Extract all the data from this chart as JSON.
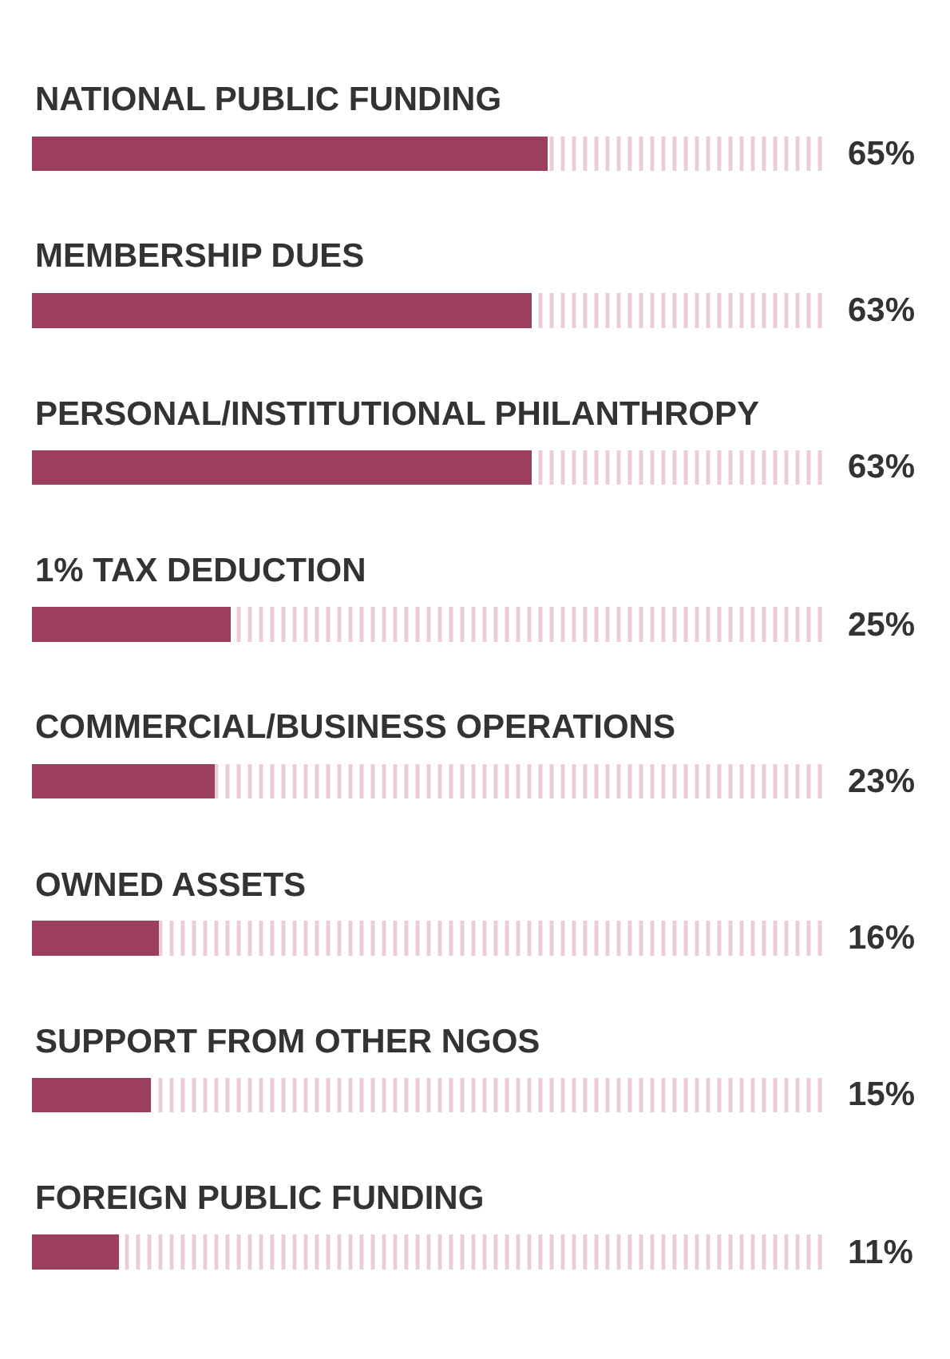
{
  "chart_data": {
    "type": "bar",
    "orientation": "horizontal",
    "stacked": true,
    "legend": false,
    "tick_labels": false,
    "xlim": [
      0,
      100
    ],
    "categories": [
      "NATIONAL PUBLIC FUNDING",
      "MEMBERSHIP DUES",
      "PERSONAL/INSTITUTIONAL PHILANTHROPY",
      "1% TAX DEDUCTION",
      "COMMERCIAL/BUSINESS OPERATIONS",
      "OWNED ASSETS",
      "SUPPORT FROM OTHER NGOS",
      "FOREIGN PUBLIC FUNDING"
    ],
    "series": [
      {
        "color": "#9b3f5c",
        "values": [
          65,
          63,
          63,
          25,
          23,
          16,
          15,
          11
        ],
        "value_labels": [
          "65%",
          "63%",
          "63%",
          "25%",
          "23%",
          "16%",
          "15%",
          "11%"
        ]
      },
      {
        "color": "#d99aac",
        "values": [
          35,
          37,
          37,
          75,
          77,
          84,
          85,
          89
        ]
      }
    ]
  }
}
